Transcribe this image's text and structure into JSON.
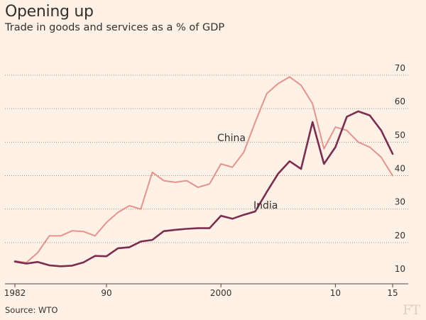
{
  "header": {
    "title": "Opening up",
    "subtitle": "Trade in goods and services as a % of GDP"
  },
  "footer": {
    "source": "Source: WTO",
    "logo": "FT"
  },
  "colors": {
    "background": "#fff1e5",
    "china": "#e8928c",
    "india": "#7c2c4f",
    "grid": "#9a9590",
    "text": "#33302e"
  },
  "chart_data": {
    "type": "line",
    "title": "Opening up",
    "subtitle": "Trade in goods and services as a % of GDP",
    "xlabel": "",
    "ylabel": "",
    "xlim": [
      1982,
      2015
    ],
    "ylim": [
      10,
      70
    ],
    "yticks": [
      10,
      20,
      30,
      40,
      50,
      60,
      70
    ],
    "y_tick_labels": [
      "10",
      "20",
      "30",
      "40",
      "50",
      "60",
      "70"
    ],
    "xticks": [
      1982,
      1990,
      2000,
      2010,
      2015
    ],
    "x_tick_labels": [
      "1982",
      "90",
      "2000",
      "10",
      "15"
    ],
    "grid": true,
    "legend": "inline labels",
    "series": [
      {
        "name": "China",
        "x": [
          1982,
          1983,
          1984,
          1985,
          1986,
          1987,
          1988,
          1989,
          1990,
          1991,
          1992,
          1993,
          1994,
          1995,
          1996,
          1997,
          1998,
          1999,
          2000,
          2001,
          2002,
          2003,
          2004,
          2005,
          2006,
          2007,
          2008,
          2009,
          2010,
          2011,
          2012,
          2013,
          2014,
          2015
        ],
        "values": [
          14.5,
          14,
          17,
          22,
          22,
          23.5,
          23.3,
          22,
          26,
          29,
          31,
          30,
          41,
          38.5,
          38,
          38.5,
          36.5,
          37.5,
          43.5,
          42.5,
          47,
          56,
          64.5,
          67.5,
          69.5,
          67,
          61.5,
          48,
          54.5,
          53.5,
          50,
          48.5,
          45.5,
          40
        ]
      },
      {
        "name": "India",
        "x": [
          1982,
          1983,
          1984,
          1985,
          1986,
          1987,
          1988,
          1989,
          1990,
          1991,
          1992,
          1993,
          1994,
          1995,
          1996,
          1997,
          1998,
          1999,
          2000,
          2001,
          2002,
          2003,
          2004,
          2005,
          2006,
          2007,
          2008,
          2009,
          2010,
          2011,
          2012,
          2013,
          2014,
          2015
        ],
        "values": [
          14.3,
          13.7,
          14.2,
          13.2,
          12.9,
          13.1,
          14.1,
          16,
          15.9,
          18.3,
          18.6,
          20.3,
          20.8,
          23.4,
          23.8,
          24.1,
          24.3,
          24.3,
          28,
          27.1,
          28.3,
          29.3,
          35.1,
          40.6,
          44.3,
          42,
          56,
          43.5,
          48.5,
          57.6,
          59.2,
          58,
          53.5,
          46.5
        ]
      }
    ]
  }
}
